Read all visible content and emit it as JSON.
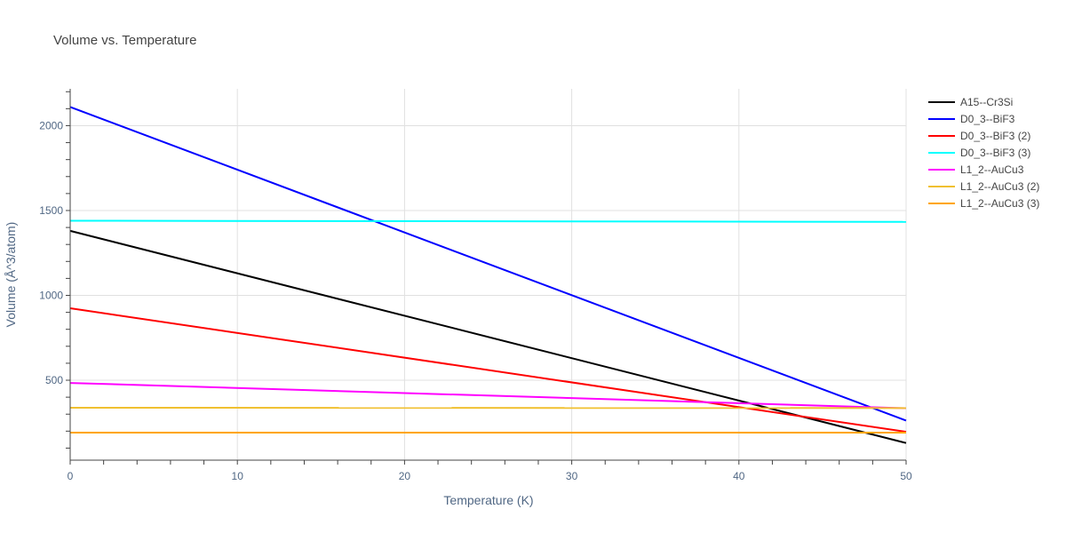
{
  "chart_data": {
    "type": "line",
    "title": "Volume vs. Temperature",
    "xlabel": "Temperature (K)",
    "ylabel": "Volume (Å^3/atom)",
    "xlim": [
      0,
      50
    ],
    "ylim": [
      29,
      2217
    ],
    "xticks": [
      0,
      10,
      20,
      30,
      40,
      50
    ],
    "yticks": [
      500,
      1000,
      1500,
      2000
    ],
    "grid": true,
    "legend_position": "top-right",
    "series": [
      {
        "name": "A15--Cr3Si",
        "color": "#000000",
        "x": [
          0,
          50
        ],
        "y": [
          1380,
          130
        ]
      },
      {
        "name": "D0_3--BiF3",
        "color": "#0000ff",
        "x": [
          0,
          50
        ],
        "y": [
          2110,
          262
        ]
      },
      {
        "name": "D0_3--BiF3 (2)",
        "color": "#ff0000",
        "x": [
          0,
          50
        ],
        "y": [
          924,
          196
        ]
      },
      {
        "name": "D0_3--BiF3 (3)",
        "color": "#00ffff",
        "x": [
          0,
          50
        ],
        "y": [
          1440,
          1433
        ]
      },
      {
        "name": "L1_2--AuCu3",
        "color": "#ff00ff",
        "x": [
          0,
          50
        ],
        "y": [
          484,
          335
        ]
      },
      {
        "name": "L1_2--AuCu3 (2)",
        "color": "#f0c030",
        "x": [
          0,
          50
        ],
        "y": [
          338,
          336
        ]
      },
      {
        "name": "L1_2--AuCu3 (3)",
        "color": "#ffa500",
        "x": [
          0,
          50
        ],
        "y": [
          191,
          191
        ]
      }
    ]
  }
}
